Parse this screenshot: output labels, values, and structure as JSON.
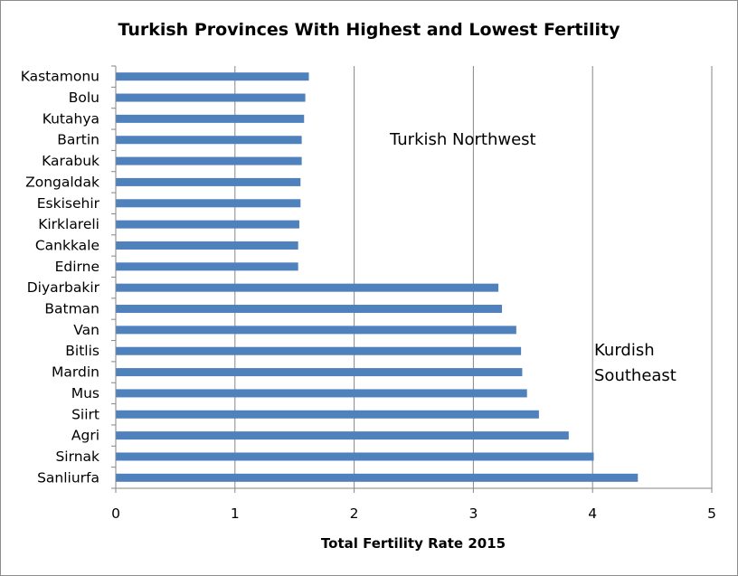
{
  "chart_data": {
    "type": "bar",
    "orientation": "horizontal",
    "title": "Turkish Provinces With Highest and Lowest Fertility",
    "xlabel": "Total Fertility Rate 2015",
    "ylabel": "",
    "xlim": [
      0,
      5
    ],
    "xticks": [
      "0",
      "1",
      "2",
      "3",
      "4",
      "5"
    ],
    "grid": "vertical",
    "legend": "none",
    "bar_color": "#4f81bd",
    "categories": [
      "Kastamonu",
      "Bolu",
      "Kutahya",
      "Bartin",
      "Karabuk",
      "Zongaldak",
      "Eskisehir",
      "Kirklareli",
      "Cankkale",
      "Edirne",
      "Diyarbakir",
      "Batman",
      "Van",
      "Bitlis",
      "Mardin",
      "Mus",
      "Siirt",
      "Agri",
      "Sirnak",
      "Sanliurfa"
    ],
    "values": [
      1.62,
      1.59,
      1.58,
      1.56,
      1.56,
      1.55,
      1.55,
      1.54,
      1.53,
      1.53,
      3.21,
      3.24,
      3.36,
      3.4,
      3.41,
      3.45,
      3.55,
      3.8,
      4.01,
      4.38
    ],
    "annotations": [
      {
        "lines": [
          "Turkish Northwest"
        ]
      },
      {
        "lines": [
          "Kurdish",
          "Southeast"
        ]
      }
    ]
  }
}
